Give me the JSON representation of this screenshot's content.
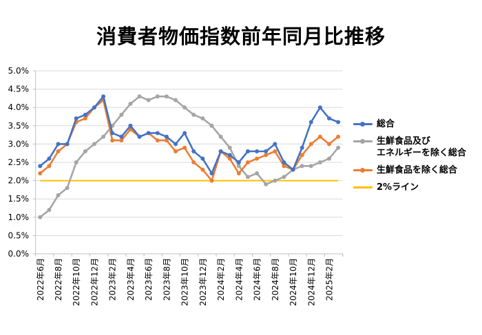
{
  "title": "消費者物価指数前年同月比推移",
  "chart_data": {
    "type": "line",
    "title": "消費者物価指数前年同月比推移",
    "xlabel": "",
    "ylabel": "",
    "ylim": [
      0,
      5.0
    ],
    "y_ticks": [
      "0.0%",
      "0.5%",
      "1.0%",
      "1.5%",
      "2.0%",
      "2.5%",
      "3.0%",
      "3.5%",
      "4.0%",
      "4.5%",
      "5.0%"
    ],
    "grid": true,
    "legend_position": "right",
    "x": [
      "2022年6月",
      "2022年7月",
      "2022年8月",
      "2022年9月",
      "2022年10月",
      "2022年11月",
      "2022年12月",
      "2023年1月",
      "2023年2月",
      "2023年3月",
      "2023年4月",
      "2023年5月",
      "2023年6月",
      "2023年7月",
      "2023年8月",
      "2023年9月",
      "2023年10月",
      "2023年11月",
      "2023年12月",
      "2024年1月",
      "2024年2月",
      "2024年3月",
      "2024年4月",
      "2024年5月",
      "2024年6月",
      "2024年7月",
      "2024年8月",
      "2024年9月",
      "2024年10月",
      "2024年11月",
      "2024年12月",
      "2025年1月",
      "2025年2月",
      "2025年3月"
    ],
    "x_tick_labels": [
      "2022年6月",
      "2022年8月",
      "2022年10月",
      "2022年12月",
      "2023年2月",
      "2023年4月",
      "2023年6月",
      "2023年8月",
      "2023年10月",
      "2023年12月",
      "2024年2月",
      "2024年4月",
      "2024年6月",
      "2024年8月",
      "2024年10月",
      "2024年12月",
      "2025年2月"
    ],
    "series": [
      {
        "name": "総合",
        "color": "#4472C4",
        "marker": true,
        "values": [
          2.4,
          2.6,
          3.0,
          3.0,
          3.7,
          3.8,
          4.0,
          4.3,
          3.3,
          3.2,
          3.5,
          3.2,
          3.3,
          3.3,
          3.2,
          3.0,
          3.3,
          2.8,
          2.6,
          2.2,
          2.8,
          2.7,
          2.5,
          2.8,
          2.8,
          2.8,
          3.0,
          2.5,
          2.3,
          2.9,
          3.6,
          4.0,
          3.7,
          3.6
        ]
      },
      {
        "name": "生鮮食品及び\nエネルギーを除く総合",
        "color": "#A5A5A5",
        "marker": true,
        "values": [
          1.0,
          1.2,
          1.6,
          1.8,
          2.5,
          2.8,
          3.0,
          3.2,
          3.5,
          3.8,
          4.1,
          4.3,
          4.2,
          4.3,
          4.3,
          4.2,
          4.0,
          3.8,
          3.7,
          3.5,
          3.2,
          2.9,
          2.4,
          2.1,
          2.2,
          1.9,
          2.0,
          2.1,
          2.3,
          2.4,
          2.4,
          2.5,
          2.6,
          2.9
        ]
      },
      {
        "name": "生鮮食品を除く総合",
        "color": "#ED7D31",
        "marker": true,
        "values": [
          2.2,
          2.4,
          2.8,
          3.0,
          3.6,
          3.7,
          4.0,
          4.2,
          3.1,
          3.1,
          3.4,
          3.2,
          3.3,
          3.1,
          3.1,
          2.8,
          2.9,
          2.5,
          2.3,
          2.0,
          2.8,
          2.6,
          2.2,
          2.5,
          2.6,
          2.7,
          2.8,
          2.4,
          2.3,
          2.7,
          3.0,
          3.2,
          3.0,
          3.2
        ]
      },
      {
        "name": "2%ライン",
        "color": "#FFC000",
        "marker": false,
        "values": [
          2.0,
          2.0,
          2.0,
          2.0,
          2.0,
          2.0,
          2.0,
          2.0,
          2.0,
          2.0,
          2.0,
          2.0,
          2.0,
          2.0,
          2.0,
          2.0,
          2.0,
          2.0,
          2.0,
          2.0,
          2.0,
          2.0,
          2.0,
          2.0,
          2.0,
          2.0,
          2.0,
          2.0,
          2.0,
          2.0,
          2.0,
          2.0,
          2.0,
          2.0
        ]
      }
    ]
  },
  "legend": {
    "items": [
      {
        "label": "総合",
        "color": "#4472C4",
        "marker": true
      },
      {
        "label": "生鮮食品及び\nエネルギーを除く総合",
        "color": "#A5A5A5",
        "marker": true
      },
      {
        "label": "生鮮食品を除く総合",
        "color": "#ED7D31",
        "marker": true
      },
      {
        "label": "2%ライン",
        "color": "#FFC000",
        "marker": false
      }
    ]
  }
}
